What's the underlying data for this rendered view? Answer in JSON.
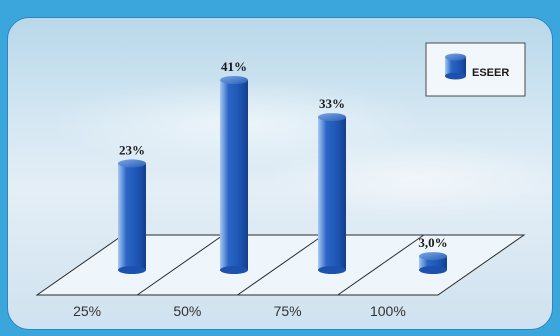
{
  "chart_data": {
    "type": "bar",
    "categories": [
      "25%",
      "50%",
      "75%",
      "100%"
    ],
    "series": [
      {
        "name": "ESEER",
        "values": [
          23,
          41,
          33,
          3.0
        ]
      }
    ],
    "data_labels": [
      "23%",
      "41%",
      "33%",
      "3,0%"
    ],
    "ylim": [
      0,
      45
    ],
    "grid": false,
    "legend": "top-right",
    "bar_color": "#2a66c6",
    "bar_highlight": "#a8c8f2",
    "bar_shadow": "#143e8a"
  }
}
